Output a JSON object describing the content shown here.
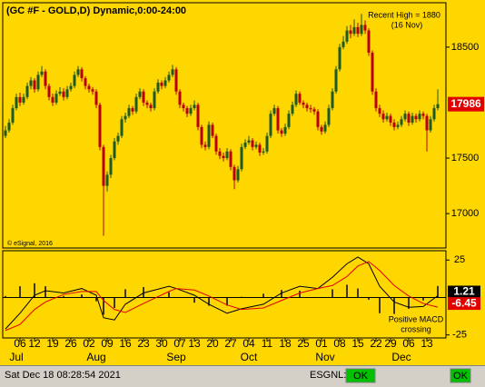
{
  "chart_data": [
    {
      "type": "candlestick",
      "title": "(GC #F - GOLD,D) Dynamic,0:00-24:00",
      "annotation": [
        "Recent High = 1880",
        "(16 Nov)"
      ],
      "credit": "© eSignal, 2016",
      "up_color": "#1e5a1e",
      "down_color": "#b80000",
      "ylim": [
        16690,
        18900
      ],
      "yticks": [
        17000,
        17500,
        18500
      ],
      "xlim": [
        -0.75,
        121.25
      ],
      "xticks": [
        {
          "value": 4,
          "label": "06"
        },
        {
          "value": 8,
          "label": "12"
        },
        {
          "value": 13,
          "label": "19"
        },
        {
          "value": 18,
          "label": "26"
        },
        {
          "value": 23,
          "label": "02"
        },
        {
          "value": 28,
          "label": "09"
        },
        {
          "value": 33,
          "label": "16"
        },
        {
          "value": 38,
          "label": "23"
        },
        {
          "value": 43,
          "label": "30"
        },
        {
          "value": 48,
          "label": "07"
        },
        {
          "value": 52,
          "label": "13"
        },
        {
          "value": 57,
          "label": "20"
        },
        {
          "value": 62,
          "label": "27"
        },
        {
          "value": 67,
          "label": "04"
        },
        {
          "value": 72,
          "label": "11"
        },
        {
          "value": 77,
          "label": "18"
        },
        {
          "value": 82,
          "label": "25"
        },
        {
          "value": 87,
          "label": "01"
        },
        {
          "value": 92,
          "label": "08"
        },
        {
          "value": 97,
          "label": "15"
        },
        {
          "value": 102,
          "label": "22"
        },
        {
          "value": 106,
          "label": "29"
        },
        {
          "value": 111,
          "label": "06"
        },
        {
          "value": 116,
          "label": "13"
        }
      ],
      "month_ticks": [
        {
          "value": 3,
          "label": "Jul"
        },
        {
          "value": 25,
          "label": "Aug"
        },
        {
          "value": 47,
          "label": "Sep"
        },
        {
          "value": 67,
          "label": "Oct"
        },
        {
          "value": 88,
          "label": "Nov"
        },
        {
          "value": 109,
          "label": "Dec"
        }
      ],
      "open": [
        17700,
        17750,
        17820,
        17950,
        18050,
        18000,
        18050,
        18150,
        18200,
        18120,
        18250,
        18280,
        18150,
        18050,
        18000,
        18080,
        18100,
        18050,
        18120,
        18150,
        18250,
        18300,
        18220,
        18150,
        18120,
        18100,
        17980,
        17600,
        17250,
        17350,
        17500,
        17650,
        17700,
        17850,
        17880,
        17950,
        17920,
        18050,
        18100,
        18000,
        17980,
        17950,
        18100,
        18180,
        18150,
        18200,
        18250,
        18300,
        18100,
        17980,
        17950,
        17900,
        17950,
        17980,
        17780,
        17620,
        17600,
        17800,
        17700,
        17560,
        17520,
        17500,
        17560,
        17420,
        17300,
        17400,
        17600,
        17640,
        17660,
        17600,
        17620,
        17550,
        17560,
        17700,
        17900,
        17950,
        17750,
        17720,
        17780,
        17900,
        17980,
        18080,
        18000,
        17980,
        17950,
        17940,
        17920,
        17780,
        17740,
        17800,
        17950,
        18100,
        18300,
        18500,
        18550,
        18650,
        18620,
        18680,
        18620,
        18700,
        18650,
        18450,
        18100,
        17950,
        17900,
        17850,
        17880,
        17820,
        17780,
        17800,
        17850,
        17900,
        17820,
        17880,
        17850,
        17900,
        17880,
        17750,
        17850,
        17950
      ],
      "high": [
        17790,
        17850,
        17980,
        18080,
        18090,
        18080,
        18180,
        18230,
        18220,
        18280,
        18330,
        18300,
        18170,
        18080,
        18110,
        18140,
        18130,
        18150,
        18180,
        18280,
        18330,
        18320,
        18240,
        18170,
        18140,
        18120,
        18000,
        17620,
        17380,
        17530,
        17680,
        17730,
        17880,
        17910,
        17980,
        17970,
        18080,
        18130,
        18120,
        18020,
        18000,
        18130,
        18210,
        18200,
        18230,
        18280,
        18340,
        18320,
        18120,
        18000,
        17970,
        17980,
        18020,
        18000,
        17800,
        17650,
        17830,
        17820,
        17720,
        17590,
        17550,
        17590,
        17580,
        17440,
        17430,
        17630,
        17670,
        17700,
        17680,
        17650,
        17640,
        17590,
        17730,
        17930,
        17980,
        17970,
        17770,
        17810,
        17930,
        18010,
        18110,
        18100,
        18020,
        18000,
        17980,
        17960,
        17940,
        17800,
        17830,
        17980,
        18130,
        18330,
        18530,
        18600,
        18690,
        18700,
        18750,
        18720,
        18800,
        18740,
        18670,
        18470,
        18130,
        17980,
        17930,
        17910,
        17900,
        17850,
        17830,
        17880,
        17930,
        17920,
        17910,
        17900,
        17930,
        17920,
        17900,
        17880,
        17980,
        18120
      ],
      "low": [
        17680,
        17730,
        17800,
        17930,
        17970,
        17980,
        18030,
        18120,
        18090,
        18100,
        18230,
        18120,
        18020,
        17970,
        17980,
        18060,
        18020,
        18030,
        18100,
        18130,
        18230,
        18190,
        18120,
        18090,
        18070,
        17950,
        17570,
        16800,
        17200,
        17320,
        17480,
        17620,
        17680,
        17820,
        17860,
        17890,
        17900,
        18030,
        17970,
        17950,
        17920,
        17930,
        18080,
        18120,
        18130,
        18180,
        18230,
        18070,
        17950,
        17920,
        17870,
        17880,
        17930,
        17750,
        17590,
        17570,
        17580,
        17680,
        17530,
        17490,
        17470,
        17480,
        17390,
        17220,
        17280,
        17380,
        17580,
        17620,
        17570,
        17580,
        17520,
        17530,
        17540,
        17680,
        17880,
        17720,
        17690,
        17700,
        17760,
        17880,
        17960,
        17980,
        17950,
        17920,
        17910,
        17890,
        17750,
        17710,
        17720,
        17780,
        17930,
        18080,
        18280,
        18480,
        18530,
        18580,
        18600,
        18590,
        18600,
        18620,
        18420,
        18070,
        17920,
        17870,
        17820,
        17830,
        17790,
        17750,
        17760,
        17780,
        17830,
        17790,
        17800,
        17820,
        17830,
        17850,
        17560,
        17730,
        17830,
        17930
      ],
      "close": [
        17750,
        17820,
        17950,
        18050,
        18000,
        18050,
        18150,
        18200,
        18120,
        18250,
        18280,
        18150,
        18050,
        18000,
        18080,
        18100,
        18050,
        18120,
        18150,
        18250,
        18300,
        18220,
        18150,
        18120,
        18100,
        17980,
        17600,
        17250,
        17350,
        17500,
        17650,
        17700,
        17850,
        17880,
        17950,
        17920,
        18050,
        18100,
        18000,
        17980,
        17950,
        18100,
        18180,
        18150,
        18200,
        18250,
        18300,
        18100,
        17980,
        17950,
        17900,
        17950,
        17980,
        17780,
        17620,
        17600,
        17800,
        17700,
        17560,
        17520,
        17500,
        17560,
        17420,
        17300,
        17400,
        17600,
        17640,
        17660,
        17600,
        17620,
        17550,
        17560,
        17700,
        17900,
        17950,
        17750,
        17720,
        17780,
        17900,
        17980,
        18080,
        18000,
        17980,
        17950,
        17940,
        17920,
        17780,
        17740,
        17800,
        17950,
        18100,
        18300,
        18500,
        18550,
        18650,
        18620,
        18680,
        18620,
        18700,
        18650,
        18450,
        18100,
        17950,
        17900,
        17850,
        17880,
        17820,
        17780,
        17800,
        17850,
        17900,
        17820,
        17880,
        17850,
        17900,
        17880,
        17750,
        17850,
        17950,
        17986
      ]
    },
    {
      "type": "macd",
      "annotation": [
        "Positive MACD",
        "crossing"
      ],
      "ylim": [
        -27,
        30
      ],
      "yticks": [
        25,
        -25
      ],
      "x": [
        0,
        4,
        8,
        11,
        16,
        21,
        25,
        27,
        30,
        33,
        38,
        45,
        47,
        52,
        56,
        61,
        65,
        71,
        76,
        81,
        86,
        90,
        94,
        97,
        100,
        103,
        107,
        111,
        115,
        119
      ],
      "histogram": {
        "color": "#000000",
        "values": [
          1,
          7.5,
          9.5,
          7.5,
          1,
          2,
          -2.5,
          -11.5,
          -7,
          5.5,
          7,
          3.5,
          0,
          -3.5,
          -5.5,
          -5.5,
          0.5,
          2.5,
          5,
          4.5,
          0,
          5.5,
          8.5,
          6,
          -1.5,
          -10.5,
          -11,
          -7.5,
          -2,
          7.66
        ]
      },
      "series": [
        {
          "color": "#000000",
          "values": [
            -21,
            -10.5,
            1.5,
            4.5,
            3,
            6,
            1.5,
            -13.5,
            -15,
            -4.5,
            3,
            7.5,
            6,
            1.5,
            -4.5,
            -10.5,
            -7.5,
            -4.5,
            3,
            7.5,
            6,
            13.5,
            22.5,
            27,
            22.5,
            7.5,
            -3,
            -6.5,
            -6,
            1.21
          ]
        },
        {
          "color": "#e00000",
          "values": [
            -22,
            -18,
            -8,
            -3,
            2,
            4,
            4,
            -2,
            -8,
            -10,
            -4,
            4,
            6,
            5,
            1,
            -5,
            -8,
            -7,
            -2,
            3,
            6,
            8,
            14,
            21,
            24,
            18,
            8,
            1,
            -4,
            -6.45
          ]
        }
      ]
    }
  ],
  "status_bar": {
    "datetime": "Sat Dec 18 08:28:54 2021",
    "feed": "ESGNL:",
    "status": [
      "OK",
      "OK"
    ]
  }
}
